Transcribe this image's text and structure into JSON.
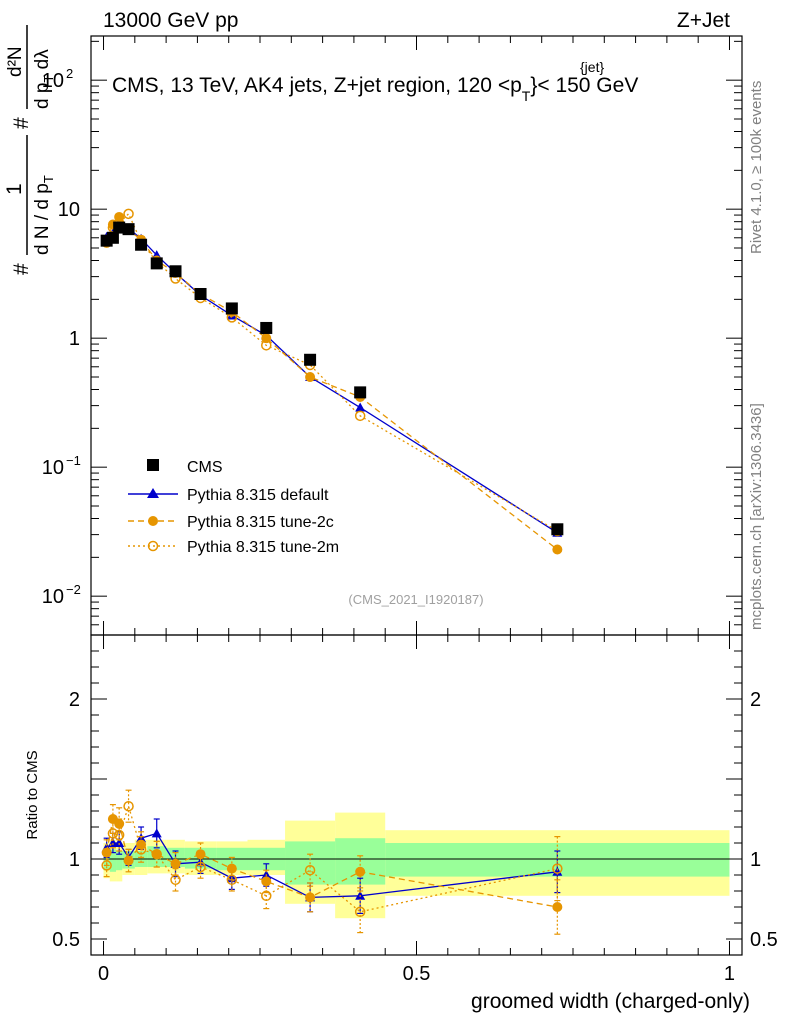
{
  "header": {
    "left": "13000 GeV pp",
    "right": "Z+Jet",
    "analysis_id": "(CMS_2021_I1920187)",
    "rivet_label": "Rivet 4.1.0, ≥ 100k events",
    "mcplots_label": "mcplots.cern.ch [arXiv:1306.3436]"
  },
  "colors": {
    "data": "#000000",
    "default": "#0000cc",
    "tune2c": "#e69500",
    "tune2m": "#e69500",
    "band_inner": "#99ff99",
    "band_outer": "#ffff99"
  },
  "chart_data": {
    "type": "scatter",
    "title_main": "CMS, 13 TeV, AK4 jets, Z+jet region, 120 <p",
    "title_sup": "{jet}",
    "title_sub": "T",
    "title_end": "}< 150 GeV",
    "xlabel": "groomed width (charged-only)",
    "ylabel": "# 1/(d N / d p_T #) d²N/(d p_T dλ)",
    "ylabel_parts": {
      "hash_a": "#",
      "frac_num": "1",
      "frac_den": "d N / d p",
      "frac_den_sub": "T",
      "hash_b": "#",
      "d2n_num": "d²N",
      "d2n_den": "d p",
      "d2n_den_sub": "T",
      "d2n_den_end": " dλ"
    },
    "ratio_ylabel": "Ratio to CMS",
    "xlim": [
      -0.02,
      1.02
    ],
    "ylim": [
      0.005,
      220
    ],
    "ratio_ylim": [
      0.4,
      2.4
    ],
    "x_ticks": [
      {
        "v": 0,
        "label": "0"
      },
      {
        "v": 0.5,
        "label": "0.5"
      },
      {
        "v": 1,
        "label": "1"
      }
    ],
    "y_ticks": [
      {
        "v": 0.01,
        "label": "10",
        "exp": "−2"
      },
      {
        "v": 0.1,
        "label": "10",
        "exp": "−1"
      },
      {
        "v": 1,
        "label": "1",
        "exp": ""
      },
      {
        "v": 10,
        "label": "10",
        "exp": ""
      },
      {
        "v": 100,
        "label": "10",
        "exp": "2"
      }
    ],
    "ratio_ticks": [
      {
        "v": 0.5,
        "label": "0.5"
      },
      {
        "v": 1,
        "label": "1"
      },
      {
        "v": 2,
        "label": "2"
      }
    ],
    "bins": [
      {
        "lo": 0.0,
        "hi": 0.01
      },
      {
        "lo": 0.01,
        "hi": 0.02
      },
      {
        "lo": 0.02,
        "hi": 0.03
      },
      {
        "lo": 0.03,
        "hi": 0.05
      },
      {
        "lo": 0.05,
        "hi": 0.07
      },
      {
        "lo": 0.07,
        "hi": 0.1
      },
      {
        "lo": 0.1,
        "hi": 0.13
      },
      {
        "lo": 0.13,
        "hi": 0.18
      },
      {
        "lo": 0.18,
        "hi": 0.23
      },
      {
        "lo": 0.23,
        "hi": 0.29
      },
      {
        "lo": 0.29,
        "hi": 0.37
      },
      {
        "lo": 0.37,
        "hi": 0.45
      },
      {
        "lo": 0.45,
        "hi": 1.0
      }
    ],
    "band_inner": [
      [
        0.93,
        1.05
      ],
      [
        0.92,
        1.06
      ],
      [
        0.93,
        1.05
      ],
      [
        0.94,
        1.05
      ],
      [
        0.95,
        1.05
      ],
      [
        0.95,
        1.08
      ],
      [
        0.95,
        1.07
      ],
      [
        0.94,
        1.07
      ],
      [
        0.93,
        1.07
      ],
      [
        0.93,
        1.07
      ],
      [
        0.84,
        1.11
      ],
      [
        0.84,
        1.13
      ],
      [
        0.89,
        1.1
      ]
    ],
    "band_outer": [
      [
        0.88,
        1.1
      ],
      [
        0.86,
        1.12
      ],
      [
        0.86,
        1.11
      ],
      [
        0.9,
        1.1
      ],
      [
        0.9,
        1.12
      ],
      [
        0.91,
        1.12
      ],
      [
        0.91,
        1.12
      ],
      [
        0.9,
        1.11
      ],
      [
        0.9,
        1.11
      ],
      [
        0.9,
        1.12
      ],
      [
        0.72,
        1.24
      ],
      [
        0.63,
        1.29
      ],
      [
        0.77,
        1.18
      ]
    ],
    "series": [
      {
        "name": "CMS",
        "key": "data",
        "x": [
          0.005,
          0.015,
          0.025,
          0.04,
          0.06,
          0.085,
          0.115,
          0.155,
          0.205,
          0.26,
          0.33,
          0.41,
          0.725
        ],
        "y": [
          5.7,
          6.0,
          7.2,
          7.0,
          5.3,
          3.8,
          3.3,
          2.2,
          1.7,
          1.2,
          0.68,
          0.38,
          0.033
        ]
      },
      {
        "name": "Pythia 8.315 default",
        "key": "default",
        "x": [
          0.005,
          0.015,
          0.025,
          0.04,
          0.06,
          0.085,
          0.115,
          0.155,
          0.205,
          0.26,
          0.33,
          0.41,
          0.725
        ],
        "y": [
          6.1,
          6.5,
          7.8,
          7.1,
          5.9,
          4.4,
          3.2,
          2.15,
          1.5,
          1.05,
          0.5,
          0.29,
          0.031
        ],
        "ratio": [
          1.07,
          1.1,
          1.1,
          1.01,
          1.13,
          1.16,
          0.97,
          0.98,
          0.88,
          0.9,
          0.76,
          0.77,
          0.92
        ],
        "ratio_err": [
          0.06,
          0.06,
          0.07,
          0.05,
          0.07,
          0.09,
          0.08,
          0.07,
          0.07,
          0.07,
          0.09,
          0.11,
          0.13
        ]
      },
      {
        "name": "Pythia 8.315 tune-2c",
        "key": "tune2c",
        "x": [
          0.005,
          0.015,
          0.025,
          0.04,
          0.06,
          0.085,
          0.115,
          0.155,
          0.205,
          0.26,
          0.33,
          0.41,
          0.725
        ],
        "y": [
          5.8,
          7.6,
          8.7,
          6.9,
          5.8,
          4.0,
          3.2,
          2.2,
          1.6,
          1.0,
          0.5,
          0.35,
          0.023
        ],
        "ratio": [
          1.04,
          1.25,
          1.22,
          0.99,
          1.09,
          1.03,
          0.97,
          1.03,
          0.94,
          0.86,
          0.76,
          0.92,
          0.7
        ],
        "ratio_err": [
          0.08,
          0.09,
          0.1,
          0.07,
          0.08,
          0.08,
          0.07,
          0.07,
          0.07,
          0.07,
          0.09,
          0.1,
          0.17
        ]
      },
      {
        "name": "Pythia 8.315 tune-2m",
        "key": "tune2m",
        "x": [
          0.005,
          0.015,
          0.025,
          0.04,
          0.06,
          0.085,
          0.115,
          0.155,
          0.205,
          0.26,
          0.33,
          0.41,
          0.725
        ],
        "y": [
          5.5,
          7.2,
          7.8,
          9.2,
          5.6,
          3.9,
          2.9,
          2.05,
          1.45,
          0.88,
          0.62,
          0.25,
          0.032
        ],
        "ratio": [
          0.96,
          1.16,
          1.15,
          1.33,
          1.06,
          1.03,
          0.87,
          0.95,
          0.87,
          0.77,
          0.93,
          0.67,
          0.94
        ],
        "ratio_err": [
          0.07,
          0.09,
          0.1,
          0.1,
          0.08,
          0.08,
          0.07,
          0.07,
          0.07,
          0.08,
          0.1,
          0.13,
          0.2
        ]
      }
    ]
  }
}
